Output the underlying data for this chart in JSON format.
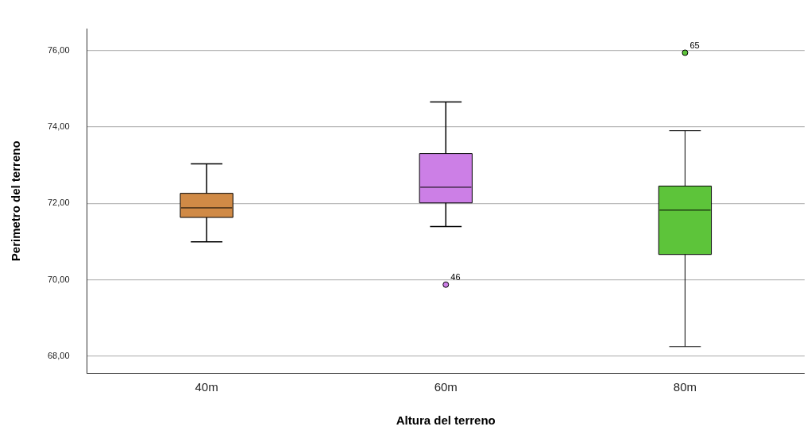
{
  "chart_data": {
    "type": "box",
    "xlabel": "Altura del terreno",
    "ylabel": "Perimetro del terreno",
    "categories": [
      "40m",
      "60m",
      "80m"
    ],
    "colors": [
      "#d08a46",
      "#cc7fe6",
      "#5dc43a"
    ],
    "boxes": [
      {
        "low": 70.99,
        "q1": 71.63,
        "median": 71.88,
        "q3": 72.26,
        "high": 73.03
      },
      {
        "low": 71.39,
        "q1": 72.01,
        "median": 72.42,
        "q3": 73.3,
        "high": 74.65,
        "outliers": [
          69.87
        ]
      },
      {
        "low": 68.25,
        "q1": 70.66,
        "median": 71.82,
        "q3": 72.45,
        "high": 73.9,
        "outliers": [
          75.94
        ]
      }
    ],
    "ylim": [
      67.56,
      76.56
    ],
    "yticks": [
      {
        "value": 68,
        "label": "68,00"
      },
      {
        "value": 70,
        "label": "70,00"
      },
      {
        "value": 72,
        "label": "72,00"
      },
      {
        "value": 74,
        "label": "74,00"
      },
      {
        "value": 76,
        "label": "76,00"
      }
    ],
    "grid": "y",
    "annotations": [
      "46",
      "65"
    ]
  }
}
